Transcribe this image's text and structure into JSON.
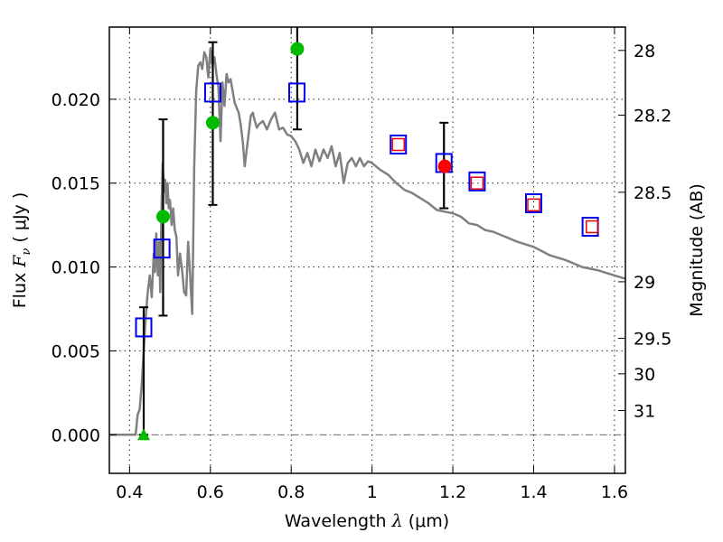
{
  "chart_data": {
    "type": "scatter",
    "title": "",
    "xlabel": "Wavelength  λ (μm)",
    "ylabel": "Flux  F_ν  ( μJy )",
    "ylabel_parts": {
      "prefix": "Flux ",
      "symbol": "F",
      "subscript": "ν",
      "unit": " ( μJy )"
    },
    "xlabel_parts": {
      "prefix": "Wavelength  ",
      "symbol": "λ",
      "unit": " (μm)"
    },
    "y2label": "Magnitude (AB)",
    "xlim": [
      0.35,
      1.627
    ],
    "ylim": [
      -0.0023,
      0.0243
    ],
    "grid": true,
    "legend": "none",
    "x_ticks": [
      {
        "value": 0.4,
        "label": "0.4"
      },
      {
        "value": 0.6,
        "label": "0.6"
      },
      {
        "value": 0.8,
        "label": "0.8"
      },
      {
        "value": 1.0,
        "label": "1"
      },
      {
        "value": 1.2,
        "label": "1.2"
      },
      {
        "value": 1.4,
        "label": "1.4"
      },
      {
        "value": 1.6,
        "label": "1.6"
      }
    ],
    "y_ticks": [
      {
        "value": 0.0,
        "label": "0.000"
      },
      {
        "value": 0.005,
        "label": "0.005"
      },
      {
        "value": 0.01,
        "label": "0.010"
      },
      {
        "value": 0.015,
        "label": "0.015"
      },
      {
        "value": 0.02,
        "label": "0.020"
      }
    ],
    "y2_ticks": [
      {
        "mag": 28,
        "label": "28"
      },
      {
        "mag": 28.2,
        "label": "28.2"
      },
      {
        "mag": 28.5,
        "label": "28.5"
      },
      {
        "mag": 29,
        "label": "29"
      },
      {
        "mag": 29.5,
        "label": "29.5"
      },
      {
        "mag": 30,
        "label": "30"
      },
      {
        "mag": 31,
        "label": "31"
      }
    ],
    "y2_zero_point": 23.9,
    "series": [
      {
        "name": "model-spectrum",
        "kind": "line",
        "color": "#808080",
        "x": [
          0.35,
          0.41,
          0.415,
          0.42,
          0.425,
          0.43,
          0.435,
          0.44,
          0.445,
          0.45,
          0.455,
          0.46,
          0.463,
          0.466,
          0.47,
          0.473,
          0.476,
          0.479,
          0.482,
          0.485,
          0.488,
          0.491,
          0.494,
          0.497,
          0.5,
          0.504,
          0.508,
          0.512,
          0.516,
          0.52,
          0.525,
          0.53,
          0.535,
          0.54,
          0.545,
          0.55,
          0.555,
          0.56,
          0.565,
          0.57,
          0.575,
          0.58,
          0.585,
          0.59,
          0.595,
          0.6,
          0.605,
          0.61,
          0.615,
          0.62,
          0.625,
          0.63,
          0.635,
          0.64,
          0.645,
          0.65,
          0.655,
          0.66,
          0.665,
          0.67,
          0.675,
          0.68,
          0.685,
          0.69,
          0.695,
          0.7,
          0.705,
          0.71,
          0.715,
          0.72,
          0.73,
          0.74,
          0.75,
          0.76,
          0.77,
          0.78,
          0.79,
          0.8,
          0.81,
          0.82,
          0.83,
          0.84,
          0.85,
          0.86,
          0.87,
          0.88,
          0.89,
          0.9,
          0.91,
          0.92,
          0.93,
          0.94,
          0.95,
          0.96,
          0.97,
          0.98,
          0.99,
          1.0,
          1.02,
          1.04,
          1.06,
          1.08,
          1.1,
          1.12,
          1.14,
          1.16,
          1.18,
          1.2,
          1.22,
          1.24,
          1.26,
          1.28,
          1.3,
          1.33,
          1.36,
          1.4,
          1.44,
          1.48,
          1.52,
          1.56,
          1.6,
          1.627
        ],
        "y": [
          0.0,
          0.0,
          0.0,
          0.0012,
          0.0015,
          0.003,
          0.005,
          0.007,
          0.0085,
          0.0095,
          0.0082,
          0.0108,
          0.0097,
          0.012,
          0.0095,
          0.0115,
          0.0085,
          0.0135,
          0.0162,
          0.0145,
          0.0152,
          0.0138,
          0.015,
          0.0135,
          0.014,
          0.0125,
          0.0135,
          0.0122,
          0.0118,
          0.0095,
          0.0108,
          0.0098,
          0.0085,
          0.0083,
          0.0115,
          0.0095,
          0.0072,
          0.016,
          0.0205,
          0.022,
          0.0222,
          0.0218,
          0.0228,
          0.0225,
          0.0213,
          0.023,
          0.022,
          0.0225,
          0.0215,
          0.0207,
          0.0175,
          0.021,
          0.0196,
          0.0215,
          0.021,
          0.0212,
          0.0205,
          0.0198,
          0.0195,
          0.0192,
          0.0185,
          0.0175,
          0.016,
          0.017,
          0.018,
          0.019,
          0.0192,
          0.0187,
          0.0183,
          0.0185,
          0.0187,
          0.0182,
          0.0188,
          0.0192,
          0.0182,
          0.0183,
          0.0179,
          0.0178,
          0.0175,
          0.017,
          0.0162,
          0.0168,
          0.016,
          0.017,
          0.0163,
          0.017,
          0.0165,
          0.0172,
          0.016,
          0.0168,
          0.015,
          0.0162,
          0.0165,
          0.016,
          0.0165,
          0.016,
          0.0163,
          0.0162,
          0.0158,
          0.0155,
          0.015,
          0.0146,
          0.0144,
          0.0141,
          0.0138,
          0.0134,
          0.0133,
          0.0132,
          0.013,
          0.0126,
          0.0125,
          0.0122,
          0.0121,
          0.0118,
          0.0115,
          0.0112,
          0.0107,
          0.0104,
          0.01,
          0.0098,
          0.0095,
          0.0093
        ]
      },
      {
        "name": "model-photometry",
        "kind": "open-square",
        "color": "#0000ee",
        "x": [
          0.435,
          0.48,
          0.606,
          0.814,
          1.065,
          1.178,
          1.26,
          1.4,
          1.54
        ],
        "y": [
          0.0064,
          0.0111,
          0.0204,
          0.0204,
          0.0173,
          0.0162,
          0.0151,
          0.0138,
          0.0124
        ]
      },
      {
        "name": "upper-limits-photometry",
        "kind": "open-square-small",
        "color": "#ee0000",
        "x": [
          1.065,
          1.26,
          1.4,
          1.545
        ],
        "y": [
          0.0173,
          0.015,
          0.0137,
          0.0124
        ]
      },
      {
        "name": "observed-hst",
        "kind": "filled-circle",
        "color": "#00bb00",
        "x": [
          0.483,
          0.606,
          0.815
        ],
        "y": [
          0.013,
          0.0186,
          0.023
        ]
      },
      {
        "name": "observed-nir",
        "kind": "filled-circle",
        "color": "#ff0000",
        "x": [
          1.18
        ],
        "y": [
          0.016
        ]
      },
      {
        "name": "non-detection",
        "kind": "triangle",
        "color": "#00bb00",
        "x": [
          0.435
        ],
        "y": [
          0.0
        ]
      }
    ],
    "error_bars": [
      {
        "x": 0.435,
        "low": 0.0,
        "high": 0.0076
      },
      {
        "x": 0.483,
        "low": 0.0071,
        "high": 0.0188
      },
      {
        "x": 0.606,
        "low": 0.0137,
        "high": 0.0234
      },
      {
        "x": 0.815,
        "low": 0.0182,
        "high": 0.0243,
        "open_top": true
      },
      {
        "x": 1.178,
        "low": 0.0135,
        "high": 0.0186
      }
    ]
  }
}
